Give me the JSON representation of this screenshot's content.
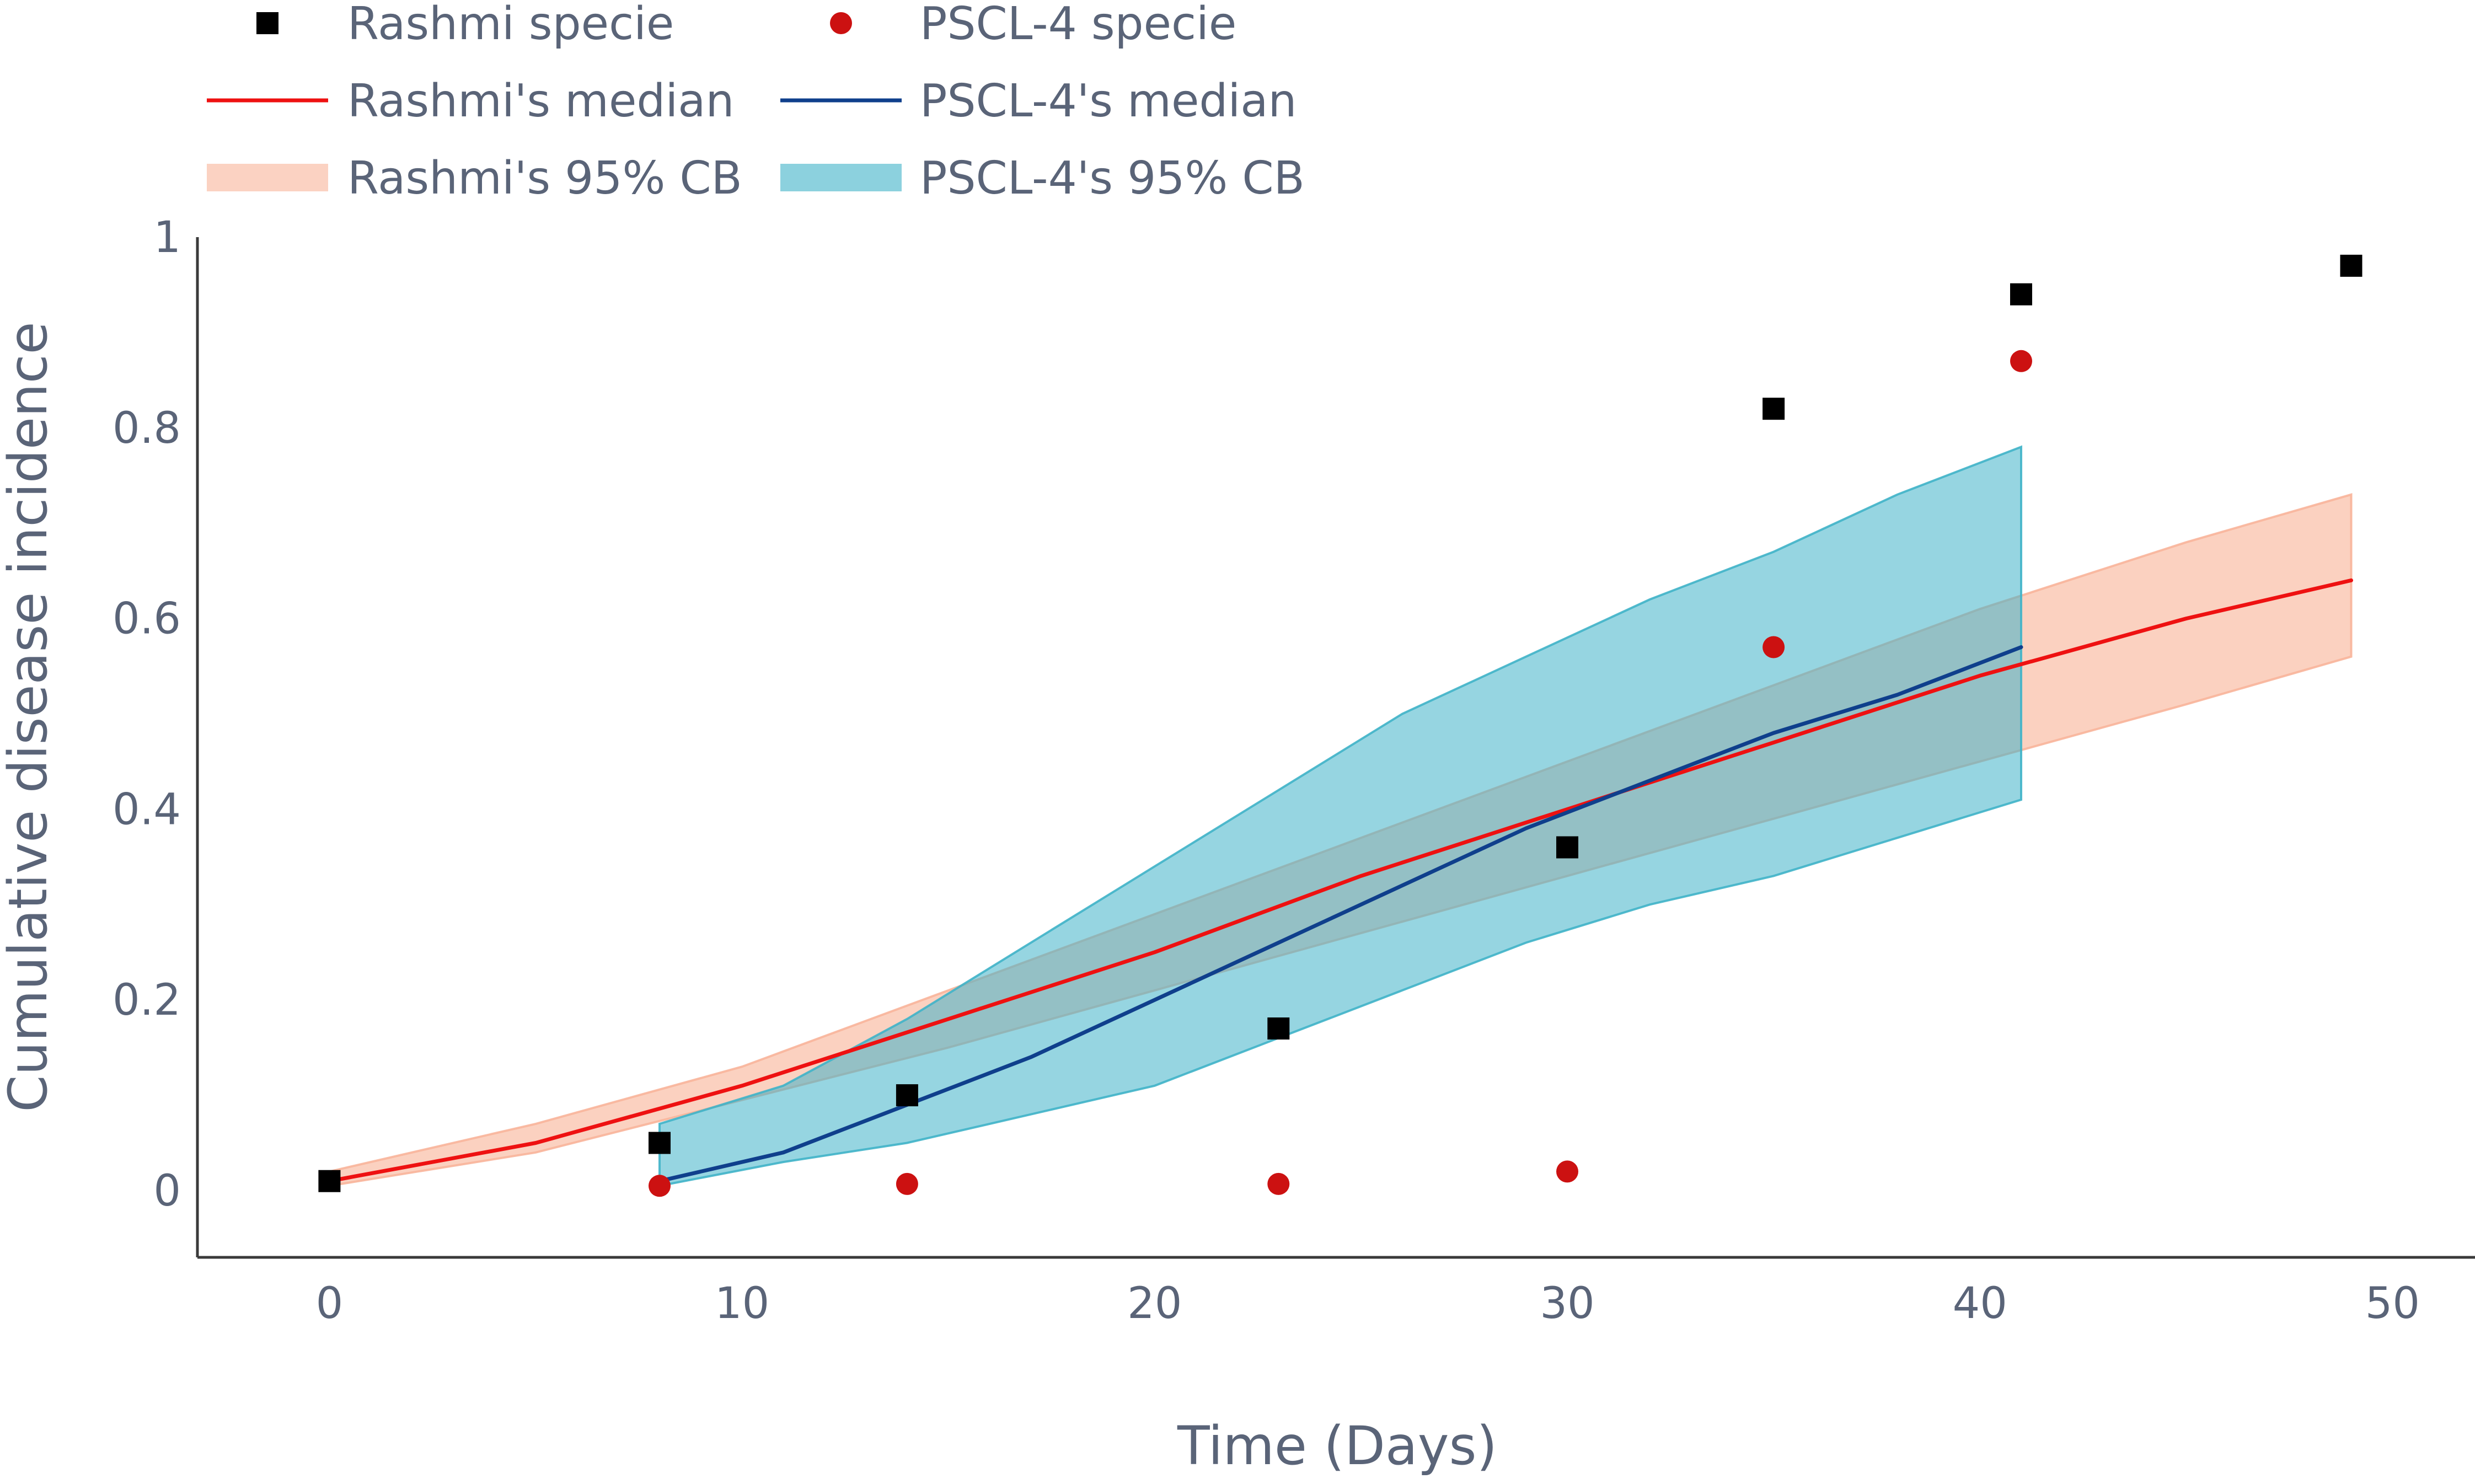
{
  "chart_data": {
    "type": "scatter",
    "xlabel": "Time (Days)",
    "ylabel": "Cumulative disease incidence",
    "xlim": [
      -3.2,
      52
    ],
    "ylim": [
      -0.07,
      1
    ],
    "xticks": [
      0,
      10,
      20,
      30,
      40,
      50
    ],
    "yticks": [
      0,
      0.2,
      0.4,
      0.6,
      0.8,
      1
    ],
    "yticklabels": [
      "0",
      "0.2",
      "0.4",
      "0.6",
      "0.8",
      "1"
    ],
    "grid": false,
    "legend_position": "top-left",
    "legend": [
      {
        "label": "Rashmi specie",
        "kind": "square-marker",
        "color": "#000000"
      },
      {
        "label": "PSCL-4 specie",
        "kind": "circle-marker",
        "color": "#cc1111"
      },
      {
        "label": "Rashmi's median",
        "kind": "line",
        "color": "#ee1111"
      },
      {
        "label": "PSCL-4's median",
        "kind": "line",
        "color": "#0f3f8c"
      },
      {
        "label": "Rashmi's 95% CB",
        "kind": "band",
        "color": "#f8b49a"
      },
      {
        "label": "PSCL-4's 95% CB",
        "kind": "band",
        "color": "#3fb2c8"
      }
    ],
    "series": [
      {
        "name": "Rashmi specie",
        "type": "scatter",
        "marker": "square",
        "color": "#000000",
        "x": [
          0,
          8,
          14,
          23,
          30,
          35,
          41,
          49
        ],
        "y": [
          0.01,
          0.05,
          0.1,
          0.17,
          0.36,
          0.82,
          0.94,
          0.97
        ]
      },
      {
        "name": "PSCL-4 specie",
        "type": "scatter",
        "marker": "circle",
        "color": "#cc1111",
        "x": [
          8,
          14,
          23,
          30,
          35,
          41
        ],
        "y": [
          0.005,
          0.007,
          0.007,
          0.02,
          0.57,
          0.87
        ]
      },
      {
        "name": "Rashmi's median",
        "type": "line",
        "color": "#ee1111",
        "x": [
          0,
          5,
          10,
          15,
          20,
          25,
          30,
          35,
          40,
          45,
          49
        ],
        "y": [
          0.01,
          0.05,
          0.11,
          0.18,
          0.25,
          0.33,
          0.4,
          0.47,
          0.54,
          0.6,
          0.64
        ]
      },
      {
        "name": "PSCL-4's median",
        "type": "line",
        "color": "#0f3f8c",
        "x": [
          8,
          11,
          14,
          17,
          20,
          23,
          26,
          29,
          32,
          35,
          38,
          41
        ],
        "y": [
          0.01,
          0.04,
          0.09,
          0.14,
          0.2,
          0.26,
          0.32,
          0.38,
          0.43,
          0.48,
          0.52,
          0.57
        ]
      },
      {
        "name": "Rashmi's 95% CB",
        "type": "band",
        "color": "#f8b49a",
        "opacity": 0.62,
        "x": [
          0,
          5,
          10,
          15,
          20,
          25,
          30,
          35,
          40,
          45,
          49
        ],
        "lower": [
          0.005,
          0.04,
          0.095,
          0.15,
          0.21,
          0.27,
          0.33,
          0.39,
          0.45,
          0.51,
          0.56
        ],
        "upper": [
          0.02,
          0.07,
          0.13,
          0.21,
          0.29,
          0.37,
          0.45,
          0.53,
          0.61,
          0.68,
          0.73
        ]
      },
      {
        "name": "PSCL-4's 95% CB",
        "type": "band",
        "color": "#3fb2c8",
        "opacity": 0.55,
        "x": [
          8,
          11,
          14,
          17,
          20,
          23,
          26,
          29,
          32,
          35,
          38,
          41
        ],
        "lower": [
          0.005,
          0.03,
          0.05,
          0.08,
          0.11,
          0.16,
          0.21,
          0.26,
          0.3,
          0.33,
          0.37,
          0.41
        ],
        "upper": [
          0.07,
          0.11,
          0.18,
          0.26,
          0.34,
          0.42,
          0.5,
          0.56,
          0.62,
          0.67,
          0.73,
          0.78
        ]
      }
    ]
  }
}
